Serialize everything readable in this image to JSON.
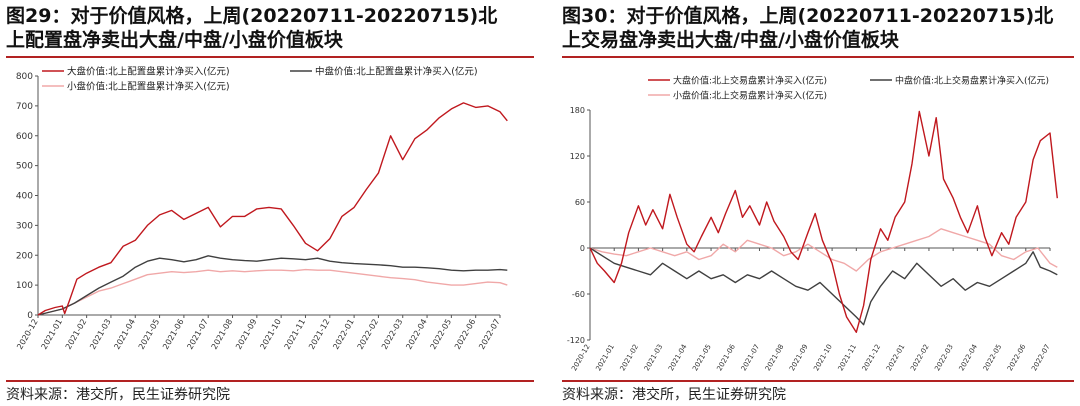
{
  "panels": [
    {
      "title_line1": "图29：对于价值风格，上周(20220711-20220715)北",
      "title_line2": "上配置盘净卖出大盘/中盘/小盘价值板块",
      "source": "资料来源：港交所，民生证券研究院"
    },
    {
      "title_line1": "图30：对于价值风格，上周(20220711-20220715)北",
      "title_line2": "上交易盘净卖出大盘/中盘/小盘价值板块",
      "source": "资料来源：港交所，民生证券研究院"
    }
  ],
  "colors": {
    "large": "#c0181e",
    "mid": "#404040",
    "small": "#f0a8a8",
    "rule": "#b22222"
  },
  "chart_data": [
    {
      "type": "line",
      "x_ticks": [
        "2020-12",
        "2021-01",
        "2021-02",
        "2021-03",
        "2021-04",
        "2021-05",
        "2021-06",
        "2021-07",
        "2021-08",
        "2021-09",
        "2021-10",
        "2021-11",
        "2021-12",
        "2022-01",
        "2022-02",
        "2022-03",
        "2022-04",
        "2022-05",
        "2022-06",
        "2022-07"
      ],
      "ylim": [
        0,
        800
      ],
      "yticks": [
        0,
        100,
        200,
        300,
        400,
        500,
        600,
        700,
        800
      ],
      "legend_position": "top",
      "series": [
        {
          "name": "大盘价值:北上配置盘累计净买入(亿元)",
          "key": "large",
          "points": [
            [
              0,
              0
            ],
            [
              0.3,
              15
            ],
            [
              0.7,
              25
            ],
            [
              1.0,
              30
            ],
            [
              1.1,
              5
            ],
            [
              1.3,
              50
            ],
            [
              1.6,
              120
            ],
            [
              2.0,
              140
            ],
            [
              2.5,
              160
            ],
            [
              3.0,
              175
            ],
            [
              3.5,
              230
            ],
            [
              4.0,
              250
            ],
            [
              4.5,
              300
            ],
            [
              5.0,
              335
            ],
            [
              5.5,
              350
            ],
            [
              6.0,
              320
            ],
            [
              6.5,
              340
            ],
            [
              7.0,
              360
            ],
            [
              7.5,
              295
            ],
            [
              8.0,
              330
            ],
            [
              8.5,
              330
            ],
            [
              9.0,
              355
            ],
            [
              9.5,
              360
            ],
            [
              10.0,
              355
            ],
            [
              10.5,
              300
            ],
            [
              11.0,
              240
            ],
            [
              11.5,
              215
            ],
            [
              12.0,
              255
            ],
            [
              12.5,
              330
            ],
            [
              13.0,
              360
            ],
            [
              13.5,
              420
            ],
            [
              14.0,
              475
            ],
            [
              14.5,
              600
            ],
            [
              15.0,
              520
            ],
            [
              15.5,
              590
            ],
            [
              16.0,
              620
            ],
            [
              16.5,
              660
            ],
            [
              17.0,
              690
            ],
            [
              17.5,
              710
            ],
            [
              18.0,
              695
            ],
            [
              18.5,
              700
            ],
            [
              19.0,
              680
            ],
            [
              19.3,
              650
            ]
          ]
        },
        {
          "name": "中盘价值:北上配置盘累计净买入(亿元)",
          "key": "mid",
          "points": [
            [
              0,
              0
            ],
            [
              0.5,
              10
            ],
            [
              1.0,
              20
            ],
            [
              1.5,
              40
            ],
            [
              2.0,
              65
            ],
            [
              2.5,
              90
            ],
            [
              3.0,
              110
            ],
            [
              3.5,
              130
            ],
            [
              4.0,
              160
            ],
            [
              4.5,
              180
            ],
            [
              5.0,
              190
            ],
            [
              5.5,
              185
            ],
            [
              6.0,
              178
            ],
            [
              6.5,
              185
            ],
            [
              7.0,
              198
            ],
            [
              7.5,
              190
            ],
            [
              8.0,
              185
            ],
            [
              8.5,
              182
            ],
            [
              9.0,
              180
            ],
            [
              9.5,
              185
            ],
            [
              10.0,
              190
            ],
            [
              10.5,
              188
            ],
            [
              11.0,
              185
            ],
            [
              11.5,
              190
            ],
            [
              12.0,
              180
            ],
            [
              12.5,
              175
            ],
            [
              13.0,
              172
            ],
            [
              13.5,
              170
            ],
            [
              14.0,
              168
            ],
            [
              14.5,
              165
            ],
            [
              15.0,
              160
            ],
            [
              15.5,
              160
            ],
            [
              16.0,
              158
            ],
            [
              16.5,
              155
            ],
            [
              17.0,
              150
            ],
            [
              17.5,
              148
            ],
            [
              18.0,
              150
            ],
            [
              18.5,
              150
            ],
            [
              19.0,
              152
            ],
            [
              19.3,
              150
            ]
          ]
        },
        {
          "name": "小盘价值:北上配置盘累计净买入(亿元)",
          "key": "small",
          "points": [
            [
              0,
              0
            ],
            [
              0.5,
              10
            ],
            [
              1.0,
              20
            ],
            [
              1.5,
              40
            ],
            [
              2.0,
              60
            ],
            [
              2.5,
              80
            ],
            [
              3.0,
              90
            ],
            [
              3.5,
              105
            ],
            [
              4.0,
              120
            ],
            [
              4.5,
              135
            ],
            [
              5.0,
              140
            ],
            [
              5.5,
              145
            ],
            [
              6.0,
              142
            ],
            [
              6.5,
              145
            ],
            [
              7.0,
              150
            ],
            [
              7.5,
              145
            ],
            [
              8.0,
              148
            ],
            [
              8.5,
              145
            ],
            [
              9.0,
              148
            ],
            [
              9.5,
              150
            ],
            [
              10.0,
              150
            ],
            [
              10.5,
              148
            ],
            [
              11.0,
              152
            ],
            [
              11.5,
              150
            ],
            [
              12.0,
              150
            ],
            [
              12.5,
              145
            ],
            [
              13.0,
              140
            ],
            [
              13.5,
              135
            ],
            [
              14.0,
              130
            ],
            [
              14.5,
              125
            ],
            [
              15.0,
              122
            ],
            [
              15.5,
              118
            ],
            [
              16.0,
              110
            ],
            [
              16.5,
              105
            ],
            [
              17.0,
              100
            ],
            [
              17.5,
              100
            ],
            [
              18.0,
              105
            ],
            [
              18.5,
              110
            ],
            [
              19.0,
              108
            ],
            [
              19.3,
              100
            ]
          ]
        }
      ]
    },
    {
      "type": "line",
      "x_ticks": [
        "2020-12",
        "2021-01",
        "2021-02",
        "2021-03",
        "2021-04",
        "2021-05",
        "2021-06",
        "2021-07",
        "2021-08",
        "2021-09",
        "2021-10",
        "2021-11",
        "2021-12",
        "2022-01",
        "2022-02",
        "2022-03",
        "2022-04",
        "2022-05",
        "2022-06",
        "2022-07"
      ],
      "ylim": [
        -120,
        180
      ],
      "yticks": [
        -120,
        -60,
        0,
        60,
        120,
        180
      ],
      "legend_position": "top",
      "series": [
        {
          "name": "大盘价值:北上交易盘累计净买入(亿元)",
          "key": "large",
          "points": [
            [
              0,
              0
            ],
            [
              0.3,
              -20
            ],
            [
              0.6,
              -30
            ],
            [
              1.0,
              -45
            ],
            [
              1.3,
              -20
            ],
            [
              1.6,
              20
            ],
            [
              2.0,
              55
            ],
            [
              2.3,
              30
            ],
            [
              2.6,
              50
            ],
            [
              3.0,
              25
            ],
            [
              3.3,
              70
            ],
            [
              3.6,
              40
            ],
            [
              4.0,
              5
            ],
            [
              4.3,
              -5
            ],
            [
              4.6,
              15
            ],
            [
              5.0,
              40
            ],
            [
              5.3,
              20
            ],
            [
              5.6,
              45
            ],
            [
              6.0,
              75
            ],
            [
              6.3,
              40
            ],
            [
              6.6,
              55
            ],
            [
              7.0,
              30
            ],
            [
              7.3,
              60
            ],
            [
              7.6,
              35
            ],
            [
              8.0,
              15
            ],
            [
              8.3,
              -5
            ],
            [
              8.6,
              -15
            ],
            [
              9.0,
              20
            ],
            [
              9.3,
              45
            ],
            [
              9.6,
              10
            ],
            [
              10.0,
              -20
            ],
            [
              10.3,
              -60
            ],
            [
              10.6,
              -90
            ],
            [
              11.0,
              -110
            ],
            [
              11.3,
              -75
            ],
            [
              11.6,
              -15
            ],
            [
              12.0,
              25
            ],
            [
              12.3,
              10
            ],
            [
              12.6,
              40
            ],
            [
              13.0,
              60
            ],
            [
              13.3,
              110
            ],
            [
              13.6,
              178
            ],
            [
              14.0,
              120
            ],
            [
              14.3,
              170
            ],
            [
              14.6,
              90
            ],
            [
              15.0,
              65
            ],
            [
              15.3,
              40
            ],
            [
              15.6,
              20
            ],
            [
              16.0,
              55
            ],
            [
              16.3,
              15
            ],
            [
              16.6,
              -10
            ],
            [
              17.0,
              20
            ],
            [
              17.3,
              5
            ],
            [
              17.6,
              40
            ],
            [
              18.0,
              60
            ],
            [
              18.3,
              115
            ],
            [
              18.6,
              140
            ],
            [
              19.0,
              150
            ],
            [
              19.3,
              65
            ]
          ]
        },
        {
          "name": "中盘价值:北上交易盘累计净买入(亿元)",
          "key": "mid",
          "points": [
            [
              0,
              0
            ],
            [
              0.5,
              -10
            ],
            [
              1.0,
              -20
            ],
            [
              1.5,
              -25
            ],
            [
              2.0,
              -30
            ],
            [
              2.5,
              -35
            ],
            [
              3.0,
              -20
            ],
            [
              3.5,
              -30
            ],
            [
              4.0,
              -40
            ],
            [
              4.5,
              -30
            ],
            [
              5.0,
              -40
            ],
            [
              5.5,
              -35
            ],
            [
              6.0,
              -45
            ],
            [
              6.5,
              -35
            ],
            [
              7.0,
              -40
            ],
            [
              7.5,
              -30
            ],
            [
              8.0,
              -40
            ],
            [
              8.5,
              -50
            ],
            [
              9.0,
              -55
            ],
            [
              9.5,
              -45
            ],
            [
              10.0,
              -60
            ],
            [
              10.5,
              -75
            ],
            [
              11.0,
              -90
            ],
            [
              11.3,
              -100
            ],
            [
              11.6,
              -70
            ],
            [
              12.0,
              -50
            ],
            [
              12.5,
              -30
            ],
            [
              13.0,
              -40
            ],
            [
              13.5,
              -20
            ],
            [
              14.0,
              -35
            ],
            [
              14.5,
              -50
            ],
            [
              15.0,
              -40
            ],
            [
              15.5,
              -55
            ],
            [
              16.0,
              -45
            ],
            [
              16.5,
              -50
            ],
            [
              17.0,
              -40
            ],
            [
              17.5,
              -30
            ],
            [
              18.0,
              -20
            ],
            [
              18.3,
              -5
            ],
            [
              18.6,
              -25
            ],
            [
              19.0,
              -30
            ],
            [
              19.3,
              -35
            ]
          ]
        },
        {
          "name": "小盘价值:北上交易盘累计净买入(亿元)",
          "key": "small",
          "points": [
            [
              0,
              0
            ],
            [
              0.5,
              -5
            ],
            [
              1.0,
              -8
            ],
            [
              1.5,
              -10
            ],
            [
              2.0,
              -5
            ],
            [
              2.5,
              0
            ],
            [
              3.0,
              -5
            ],
            [
              3.5,
              -10
            ],
            [
              4.0,
              -5
            ],
            [
              4.5,
              -15
            ],
            [
              5.0,
              -10
            ],
            [
              5.5,
              5
            ],
            [
              6.0,
              -5
            ],
            [
              6.5,
              10
            ],
            [
              7.0,
              5
            ],
            [
              7.5,
              0
            ],
            [
              8.0,
              -10
            ],
            [
              8.5,
              -5
            ],
            [
              9.0,
              5
            ],
            [
              9.5,
              -5
            ],
            [
              10.0,
              -15
            ],
            [
              10.5,
              -20
            ],
            [
              11.0,
              -30
            ],
            [
              11.5,
              -15
            ],
            [
              12.0,
              -5
            ],
            [
              12.5,
              0
            ],
            [
              13.0,
              5
            ],
            [
              13.5,
              10
            ],
            [
              14.0,
              15
            ],
            [
              14.5,
              25
            ],
            [
              15.0,
              20
            ],
            [
              15.5,
              15
            ],
            [
              16.0,
              10
            ],
            [
              16.5,
              5
            ],
            [
              17.0,
              -10
            ],
            [
              17.5,
              -15
            ],
            [
              18.0,
              -5
            ],
            [
              18.5,
              0
            ],
            [
              19.0,
              -20
            ],
            [
              19.3,
              -25
            ]
          ]
        }
      ]
    }
  ]
}
